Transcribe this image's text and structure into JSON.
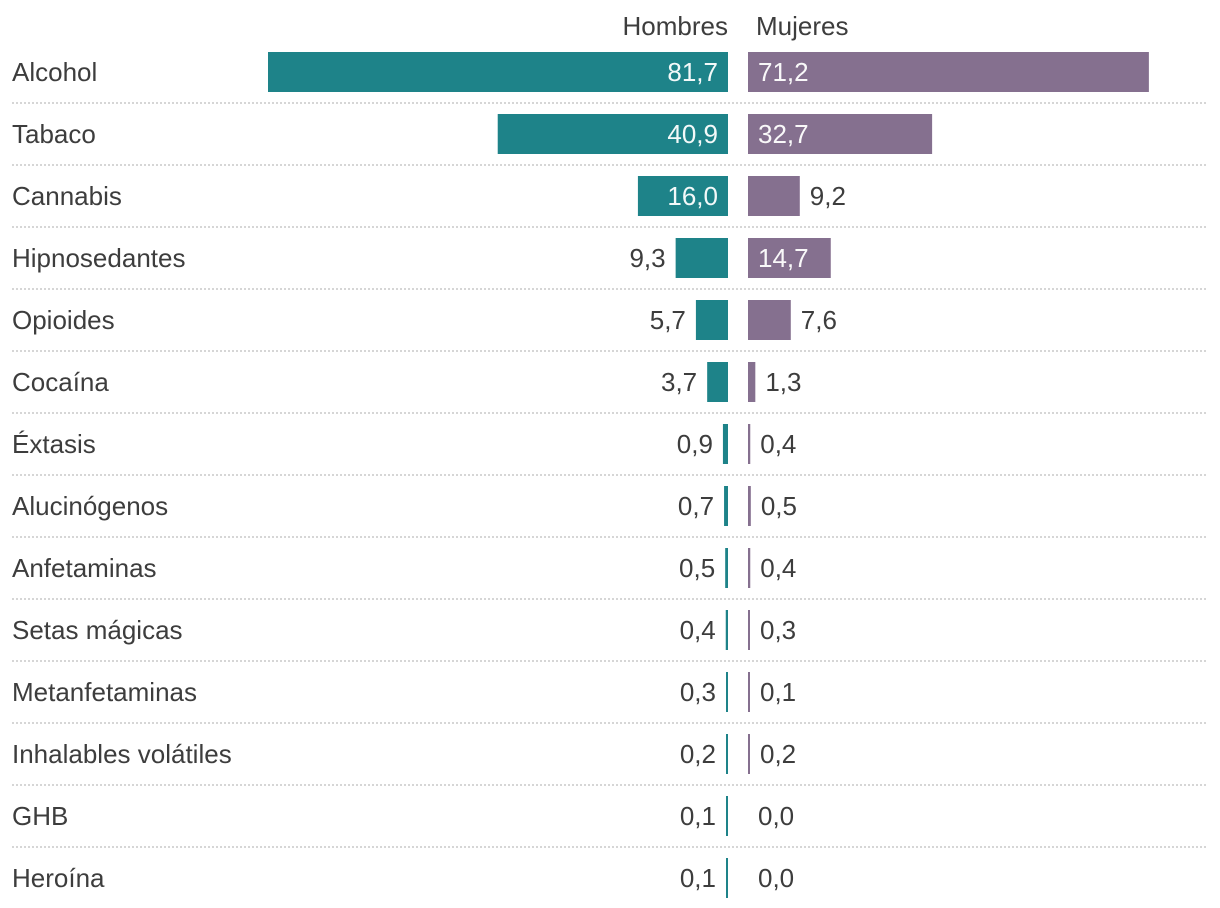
{
  "chart_data": {
    "type": "bar",
    "orientation": "horizontal-diverging",
    "title": "",
    "xlabel": "",
    "ylabel": "",
    "categories": [
      "Alcohol",
      "Tabaco",
      "Cannabis",
      "Hipnosedantes",
      "Opioides",
      "Cocaína",
      "Éxtasis",
      "Alucinógenos",
      "Anfetaminas",
      "Setas mágicas",
      "Metanfetaminas",
      "Inhalables volátiles",
      "GHB",
      "Heroína"
    ],
    "series": [
      {
        "name": "Hombres",
        "color": "#1e8389",
        "values": [
          81.7,
          40.9,
          16.0,
          9.3,
          5.7,
          3.7,
          0.9,
          0.7,
          0.5,
          0.4,
          0.3,
          0.2,
          0.1,
          0.1
        ],
        "labels": [
          "81,7",
          "40,9",
          "16,0",
          "9,3",
          "5,7",
          "3,7",
          "0,9",
          "0,7",
          "0,5",
          "0,4",
          "0,3",
          "0,2",
          "0,1",
          "0,1"
        ]
      },
      {
        "name": "Mujeres",
        "color": "#85708f",
        "values": [
          71.2,
          32.7,
          9.2,
          14.7,
          7.6,
          1.3,
          0.4,
          0.5,
          0.4,
          0.3,
          0.1,
          0.2,
          0.0,
          0.0
        ],
        "labels": [
          "71,2",
          "32,7",
          "9,2",
          "14,7",
          "7,6",
          "1,3",
          "0,4",
          "0,5",
          "0,4",
          "0,3",
          "0,1",
          "0,2",
          "0,0",
          "0,0"
        ]
      }
    ],
    "xlim": [
      0,
      81.7
    ],
    "grid": "dotted row separators",
    "legend": "column headers at top"
  }
}
